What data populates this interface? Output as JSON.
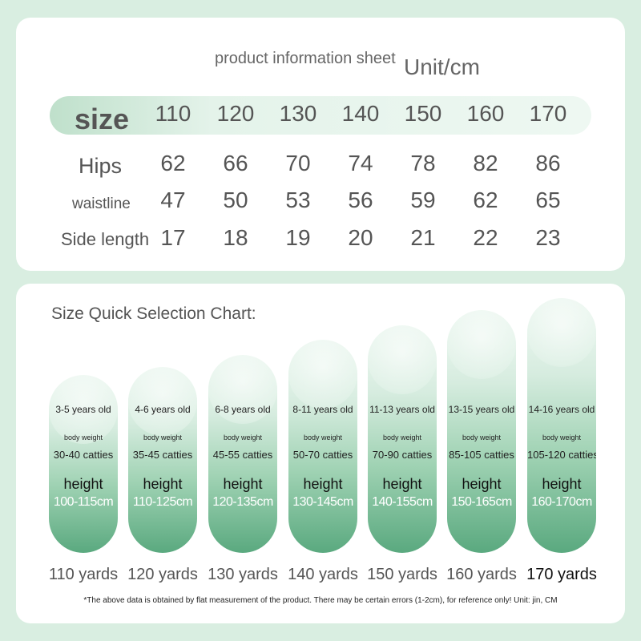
{
  "info": {
    "title": "product information sheet",
    "unit": "Unit/cm",
    "rows": [
      {
        "label": "size",
        "values": [
          "110",
          "120",
          "130",
          "140",
          "150",
          "160",
          "170"
        ]
      },
      {
        "label": "Hips",
        "values": [
          "62",
          "66",
          "70",
          "74",
          "78",
          "82",
          "86"
        ]
      },
      {
        "label": "waistline",
        "values": [
          "47",
          "50",
          "53",
          "56",
          "59",
          "62",
          "65"
        ]
      },
      {
        "label": "Side length",
        "values": [
          "17",
          "18",
          "19",
          "20",
          "21",
          "22",
          "23"
        ]
      }
    ]
  },
  "quick": {
    "title": "Size Quick Selection Chart:",
    "items": [
      {
        "age": "3-5 years old",
        "bw_label": "body weight",
        "weight": "30-40 catties",
        "height_label": "height",
        "height": "100-115cm",
        "yard": "110 yards"
      },
      {
        "age": "4-6 years old",
        "bw_label": "body weight",
        "weight": "35-45 catties",
        "height_label": "height",
        "height": "110-125cm",
        "yard": "120 yards"
      },
      {
        "age": "6-8 years old",
        "bw_label": "body weight",
        "weight": "45-55 catties",
        "height_label": "height",
        "height": "120-135cm",
        "yard": "130 yards"
      },
      {
        "age": "8-11 years old",
        "bw_label": "body weight",
        "weight": "50-70 catties",
        "height_label": "height",
        "height": "130-145cm",
        "yard": "140 yards"
      },
      {
        "age": "11-13 years old",
        "bw_label": "body weight",
        "weight": "70-90 catties",
        "height_label": "height",
        "height": "140-155cm",
        "yard": "150 yards"
      },
      {
        "age": "13-15 years old",
        "bw_label": "body weight",
        "weight": "85-105 catties",
        "height_label": "height",
        "height": "150-165cm",
        "yard": "160 yards"
      },
      {
        "age": "14-16 years old",
        "bw_label": "body weight",
        "weight": "105-120 catties",
        "height_label": "height",
        "height": "160-170cm",
        "yard": "170 yards"
      }
    ],
    "footnote": "*The above data is obtained by flat measurement of the product. There may be certain errors (1-2cm), for reference only! Unit: jin, CM"
  }
}
